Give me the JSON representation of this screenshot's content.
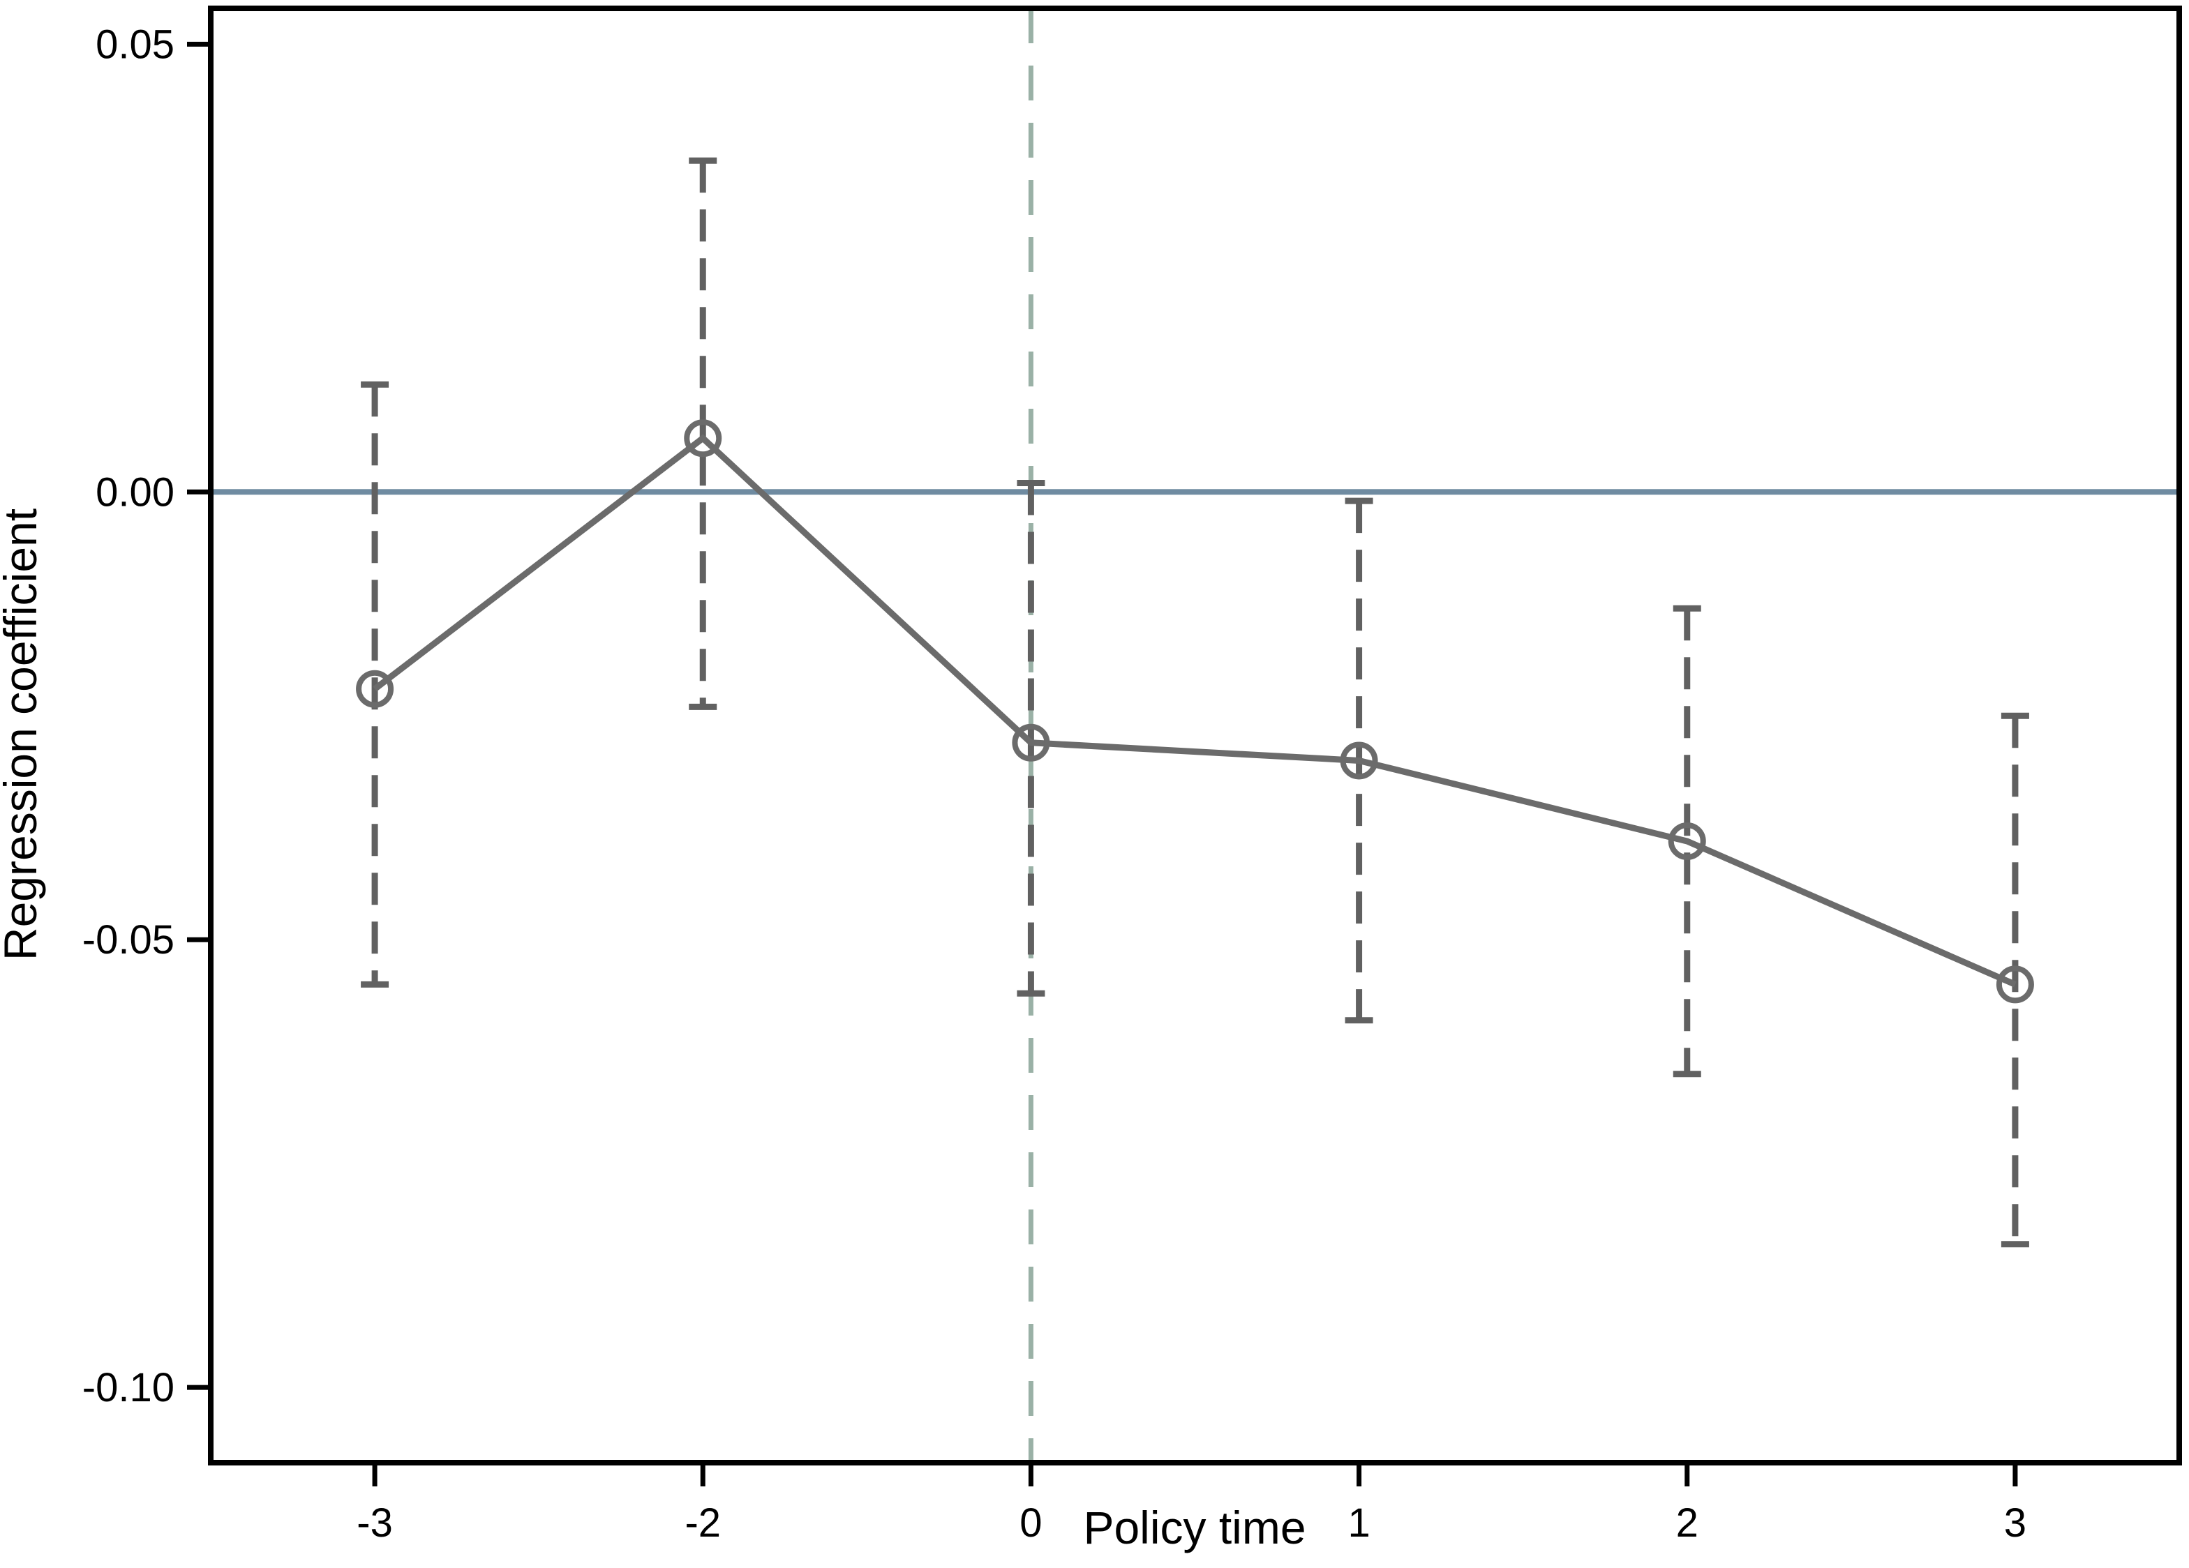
{
  "figure": {
    "background": "#ffffff"
  },
  "chart_data": {
    "type": "line",
    "title": "",
    "xlabel": "Policy time",
    "ylabel": "Regression coefficient",
    "categories": [
      "-3",
      "-2",
      "0",
      "1",
      "2",
      "3"
    ],
    "series": [
      {
        "name": "Regression coefficient",
        "values": [
          -0.022,
          0.006,
          -0.028,
          -0.03,
          -0.039,
          -0.055
        ],
        "ci_low": [
          -0.055,
          -0.024,
          -0.056,
          -0.059,
          -0.065,
          -0.084
        ],
        "ci_high": [
          0.012,
          0.037,
          0.001,
          -0.001,
          -0.013,
          -0.025
        ]
      }
    ],
    "y_ticks": {
      "values": [
        0.05,
        0.0,
        -0.05,
        -0.1
      ],
      "labels": [
        "0.05",
        "0.00",
        "-0.05",
        "-0.10"
      ]
    },
    "ylim": [
      -0.1084,
      0.054
    ],
    "reference_lines": {
      "zero_line_y": 0,
      "event_line_at_category": "0"
    },
    "legend": "none",
    "grid": false,
    "colors": {
      "series": "#6b6b6b",
      "error_bar": "#616161",
      "zero_line": "#6f8ba1",
      "event_line": "#9ab1a6",
      "axis": "#000000",
      "text": "#000000"
    },
    "styles": {
      "marker": "open-circle",
      "error_bar_style": "dashed",
      "event_line_style": "dashed",
      "zero_line_style": "solid"
    }
  }
}
